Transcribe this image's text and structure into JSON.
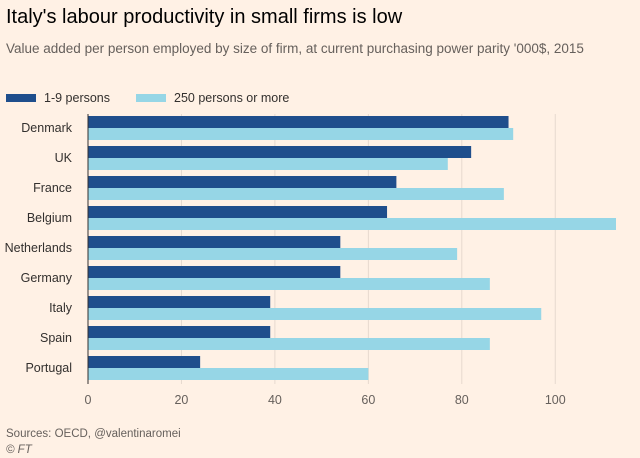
{
  "title": "Italy's labour productivity in small firms is low",
  "subtitle": "Value added per person employed by size of firm, at current purchasing power parity '000$, 2015",
  "legend": [
    {
      "label": "1-9 persons",
      "color": "#1f4e8c"
    },
    {
      "label": "250 persons or more",
      "color": "#96d6e6"
    }
  ],
  "footer": {
    "source": "Sources: OECD, @valentinaromei",
    "brand": "© FT"
  },
  "chart_data": {
    "type": "bar",
    "orientation": "horizontal",
    "title": "Italy's labour productivity in small firms is low",
    "xlabel": "",
    "ylabel": "",
    "xlim": [
      0,
      113
    ],
    "xticks": [
      0,
      20,
      40,
      60,
      80,
      100
    ],
    "grid": true,
    "legend_position": "top-left",
    "categories": [
      "Denmark",
      "UK",
      "France",
      "Belgium",
      "Netherlands",
      "Germany",
      "Italy",
      "Spain",
      "Portugal"
    ],
    "series": [
      {
        "name": "1-9 persons",
        "color": "#1f4e8c",
        "values": [
          90,
          82,
          66,
          64,
          54,
          54,
          39,
          39,
          24
        ]
      },
      {
        "name": "250 persons or more",
        "color": "#96d6e6",
        "values": [
          91,
          77,
          89,
          113,
          79,
          86,
          97,
          86,
          60
        ]
      }
    ]
  }
}
